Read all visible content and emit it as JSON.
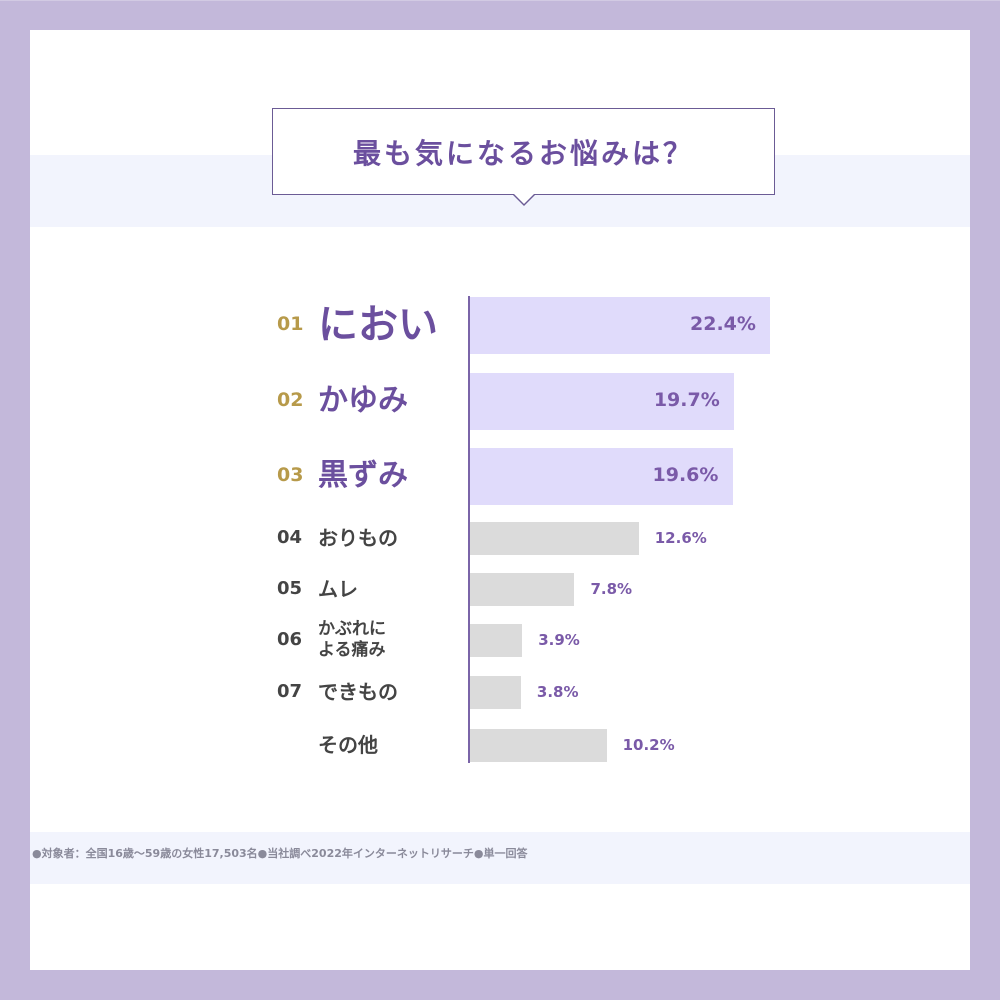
{
  "title": "最も気になるお悩みは？",
  "note": "●対象者：全国16歳〜59歳の女性17,503名●当社調べ2022年インターネットリサーチ●単一回答",
  "colors": {
    "frame": "#c3b8da",
    "top_bar": "#e0dbfb",
    "other_bar": "#dbdbdb",
    "top_rank": "#b79a4a",
    "top_label": "#6b4f9e",
    "other_text": "#444444",
    "value": "#7a5aa8"
  },
  "chart_data": {
    "type": "bar",
    "orientation": "horizontal",
    "title": "最も気になるお悩みは？",
    "categories": [
      {
        "rank": "01",
        "label": "におい",
        "value": 22.4,
        "value_label": "22.4%"
      },
      {
        "rank": "02",
        "label": "かゆみ",
        "value": 19.7,
        "value_label": "19.7%"
      },
      {
        "rank": "03",
        "label": "黒ずみ",
        "value": 19.6,
        "value_label": "19.6%"
      },
      {
        "rank": "04",
        "label": "おりもの",
        "value": 12.6,
        "value_label": "12.6%"
      },
      {
        "rank": "05",
        "label": "ムレ",
        "value": 7.8,
        "value_label": "7.8%"
      },
      {
        "rank": "06",
        "label": "かぶれに\nよる痛み",
        "value": 3.9,
        "value_label": "3.9%"
      },
      {
        "rank": "07",
        "label": "できもの",
        "value": 3.8,
        "value_label": "3.8%"
      },
      {
        "rank": "",
        "label": "その他",
        "value": 10.2,
        "value_label": "10.2%"
      }
    ],
    "xlim": [
      0,
      25
    ],
    "grid": false,
    "legend": "none"
  }
}
